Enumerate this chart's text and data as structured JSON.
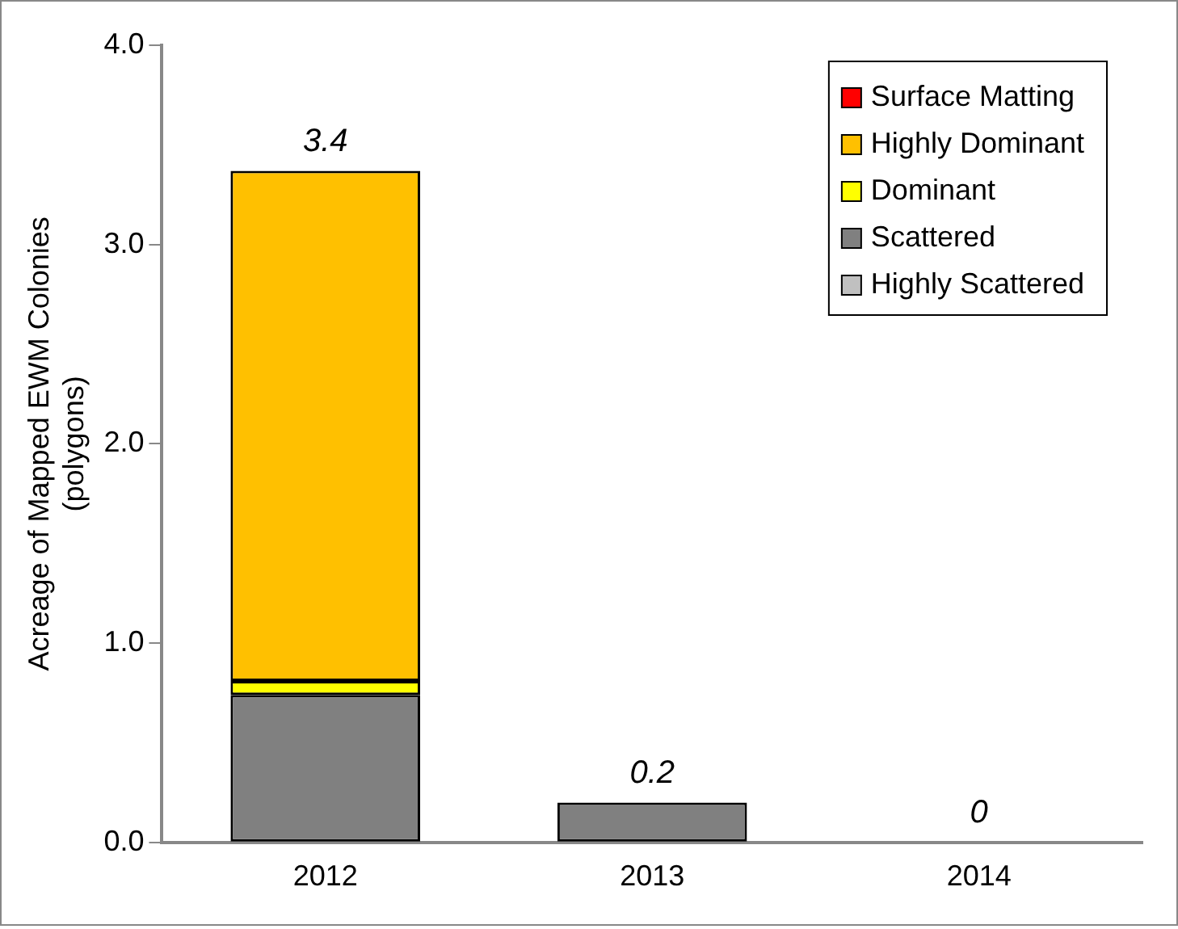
{
  "chart_data": {
    "type": "bar",
    "stacked": true,
    "ylabel": "Acreage of Mapped EWM Colonies\n(polygons)",
    "categories": [
      "2012",
      "2013",
      "2014"
    ],
    "series": [
      {
        "name": "Highly Scattered",
        "color": "#c0c0c0",
        "values": [
          0,
          0,
          0
        ]
      },
      {
        "name": "Scattered",
        "color": "#808080",
        "values": [
          0.74,
          0.2,
          0
        ]
      },
      {
        "name": "Dominant",
        "color": "#ffff00",
        "values": [
          0.07,
          0,
          0
        ]
      },
      {
        "name": "Highly Dominant",
        "color": "#ffc000",
        "values": [
          2.56,
          0,
          0
        ]
      },
      {
        "name": "Surface Matting",
        "color": "#ff0000",
        "values": [
          0,
          0,
          0
        ]
      }
    ],
    "totals": [
      "3.4",
      "0.2",
      "0"
    ],
    "ylim": [
      0,
      4
    ],
    "yticks": [
      {
        "value": 0,
        "label": "0.0"
      },
      {
        "value": 1,
        "label": "1.0"
      },
      {
        "value": 2,
        "label": "2.0"
      },
      {
        "value": 3,
        "label": "3.0"
      },
      {
        "value": 4,
        "label": "4.0"
      }
    ],
    "grid": false,
    "legend": "top right"
  }
}
